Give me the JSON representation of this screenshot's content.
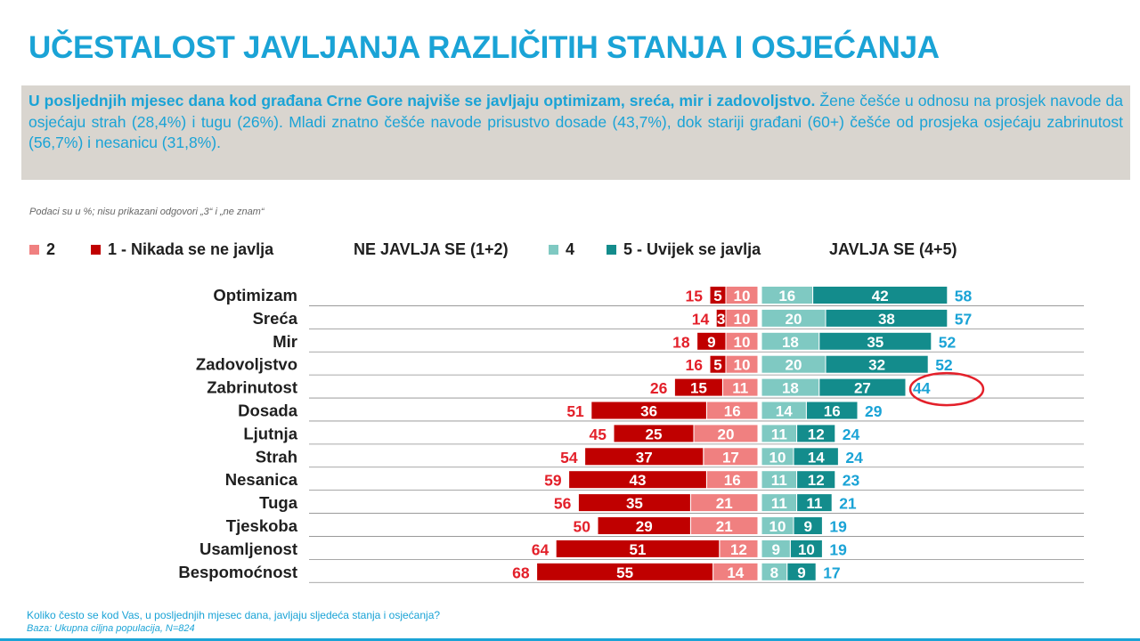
{
  "title": "UČESTALOST JAVLJANJA RAZLIČITIH  STANJA I OSJEĆANJA",
  "summary": {
    "bold": "U posljednjih mjesec dana kod građana Crne Gore najviše se  javljaju optimizam, sreća, mir i zadovoljstvo.",
    "rest": " Žene češće u odnosu na prosjek navode da osjećaju strah (28,4%) i tugu (26%). Mladi znatno češće navode prisustvo dosade (43,7%), dok stariji građani (60+) češće od prosjeka osjećaju zabrinutost (56,7%) i nesanicu (31,8%)."
  },
  "note": "Podaci su u %; nisu prikazani odgovori „3“ i „ne znam“",
  "legend": {
    "item2": "2",
    "item1": "1 -  Nikada se ne javlja",
    "ne_total": "NE JAVLJA SE (1+2)",
    "item4": "4",
    "item5": "5 - Uvijek se javlja",
    "da_total": "JAVLJA SE (4+5)"
  },
  "colors": {
    "c1": "#c00000",
    "c2": "#f08080",
    "c4": "#7fc9c2",
    "c5": "#138c8c",
    "neg_total": "#e3202a",
    "pos_total": "#1aa3d6",
    "highlight": "#e3202a"
  },
  "chart_data": {
    "type": "bar",
    "categories": [
      "Optimizam",
      "Sreća",
      "Mir",
      "Zadovoljstvo",
      "Zabrinutost",
      "Dosada",
      "Ljutnja",
      "Strah",
      "Nesanica",
      "Tuga",
      "Tjeskoba",
      "Usamljenost",
      "Bespomoćnost"
    ],
    "series": [
      {
        "name": "1 -  Nikada se ne javlja",
        "values": [
          5,
          3,
          9,
          5,
          15,
          36,
          25,
          37,
          43,
          35,
          29,
          51,
          55
        ]
      },
      {
        "name": "2",
        "values": [
          10,
          10,
          10,
          10,
          11,
          16,
          20,
          17,
          16,
          21,
          21,
          12,
          14
        ]
      },
      {
        "name": "4",
        "values": [
          16,
          20,
          18,
          20,
          18,
          14,
          11,
          10,
          11,
          11,
          10,
          9,
          8
        ]
      },
      {
        "name": "5 - Uvijek se javlja",
        "values": [
          42,
          38,
          35,
          32,
          27,
          16,
          12,
          14,
          12,
          11,
          9,
          10,
          9
        ]
      }
    ],
    "ne_totals": [
      15,
      14,
      18,
      16,
      26,
      51,
      45,
      54,
      59,
      56,
      50,
      64,
      68
    ],
    "da_totals": [
      58,
      57,
      52,
      52,
      44,
      29,
      24,
      24,
      23,
      21,
      19,
      19,
      17
    ],
    "highlighted_category": "Zabrinutost"
  },
  "footer": {
    "question": "Koliko često se kod Vas, u posljednjih mjesec dana, javljaju sljedeća stanja i osjećanja?",
    "base": "Baza: Ukupna ciljna populacija,  N=824"
  }
}
